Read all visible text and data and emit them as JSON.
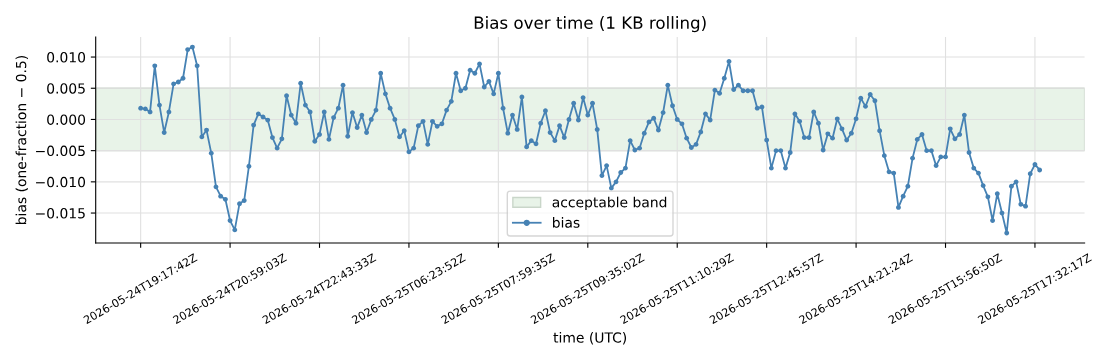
{
  "chart_data": {
    "type": "line",
    "title": "Bias over time (1 KB rolling)",
    "xlabel": "time (UTC)",
    "ylabel": "bias (one-fraction − 0.5)",
    "categories": [
      "2026-05-24T19:17:42Z",
      null,
      null,
      null,
      null,
      null,
      null,
      null,
      null,
      null,
      null,
      null,
      null,
      null,
      null,
      null,
      null,
      null,
      null,
      "2026-05-24T20:59:03Z",
      null,
      null,
      null,
      null,
      null,
      null,
      null,
      null,
      null,
      null,
      null,
      null,
      null,
      null,
      null,
      null,
      null,
      null,
      "2026-05-24T22:43:33Z",
      null,
      null,
      null,
      null,
      null,
      null,
      null,
      null,
      null,
      null,
      null,
      null,
      null,
      null,
      null,
      null,
      null,
      null,
      "2026-05-25T06:23:52Z",
      null,
      null,
      null,
      null,
      null,
      null,
      null,
      null,
      null,
      null,
      null,
      null,
      null,
      null,
      null,
      null,
      null,
      null,
      "2026-05-25T07:59:35Z",
      null,
      null,
      null,
      null,
      null,
      null,
      null,
      null,
      null,
      null,
      null,
      null,
      null,
      null,
      null,
      null,
      null,
      null,
      "2026-05-25T09:35:02Z",
      null,
      null,
      null,
      null,
      null,
      null,
      null,
      null,
      null,
      null,
      null,
      null,
      null,
      null,
      null,
      null,
      null,
      null,
      "2026-05-25T11:10:29Z",
      null,
      null,
      null,
      null,
      null,
      null,
      null,
      null,
      null,
      null,
      null,
      null,
      null,
      null,
      null,
      null,
      null,
      null,
      "2026-05-25T12:45:57Z",
      null,
      null,
      null,
      null,
      null,
      null,
      null,
      null,
      null,
      null,
      null,
      null,
      null,
      null,
      null,
      null,
      null,
      null,
      "2026-05-25T14:21:24Z",
      null,
      null,
      null,
      null,
      null,
      null,
      null,
      null,
      null,
      null,
      null,
      null,
      null,
      null,
      null,
      null,
      null,
      null,
      "2026-05-25T15:56:50Z",
      null,
      null,
      null,
      null,
      null,
      null,
      null,
      null,
      null,
      null,
      null,
      null,
      null,
      null,
      null,
      null,
      null,
      null,
      "2026-05-25T17:32:17Z",
      null
    ],
    "series": [
      {
        "name": "bias",
        "color": "#4682b4",
        "values": [
          0.0018,
          0.0017,
          0.0012,
          0.0086,
          0.0023,
          -0.0021,
          0.0012,
          0.0057,
          0.006,
          0.0066,
          0.0112,
          0.0116,
          0.0086,
          -0.0028,
          -0.0017,
          -0.0054,
          -0.0108,
          -0.0123,
          -0.0128,
          -0.0162,
          -0.0177,
          -0.0135,
          -0.013,
          -0.0075,
          -0.0009,
          0.0009,
          0.0004,
          -0.0001,
          -0.0029,
          -0.0046,
          -0.0031,
          0.0038,
          0.0007,
          -0.0006,
          0.0058,
          0.0023,
          0.0012,
          -0.0035,
          -0.0024,
          0.0012,
          -0.0032,
          0.0003,
          0.0018,
          0.0055,
          -0.0027,
          0.0011,
          -0.0013,
          0.0007,
          -0.0021,
          0.0,
          0.0015,
          0.0074,
          0.0041,
          0.0018,
          0.0,
          -0.0028,
          -0.0018,
          -0.0052,
          -0.0046,
          -0.001,
          -0.0003,
          -0.004,
          -0.0003,
          -0.0011,
          -0.0007,
          0.0015,
          0.0029,
          0.0074,
          0.0046,
          0.005,
          0.0079,
          0.0074,
          0.0089,
          0.0052,
          0.0061,
          0.0041,
          0.0074,
          0.0018,
          -0.0022,
          0.0007,
          -0.0016,
          0.0036,
          -0.0044,
          -0.0034,
          -0.0039,
          -0.0006,
          0.0014,
          -0.0021,
          -0.0034,
          -0.001,
          -0.0029,
          0.0,
          0.0026,
          -0.0001,
          0.0035,
          0.0007,
          0.0026,
          -0.0016,
          -0.009,
          -0.0074,
          -0.011,
          -0.01,
          -0.0085,
          -0.0078,
          -0.0034,
          -0.0049,
          -0.0046,
          -0.0022,
          -0.0004,
          0.0002,
          -0.0017,
          0.0011,
          0.0055,
          0.0022,
          0.0,
          -0.0007,
          -0.003,
          -0.0045,
          -0.004,
          -0.002,
          0.0009,
          -0.0001,
          0.0047,
          0.0042,
          0.0066,
          0.0093,
          0.0048,
          0.0055,
          0.0046,
          0.0046,
          0.0046,
          0.0018,
          0.002,
          -0.0033,
          -0.0078,
          -0.005,
          -0.005,
          -0.0078,
          -0.0053,
          0.0009,
          -0.0003,
          -0.0029,
          -0.0029,
          0.0012,
          -0.0006,
          -0.0049,
          -0.0023,
          -0.003,
          0.0001,
          -0.0015,
          -0.0033,
          -0.0022,
          0.0001,
          0.0034,
          0.0021,
          0.004,
          0.003,
          -0.0018,
          -0.0058,
          -0.0084,
          -0.0086,
          -0.0141,
          -0.0123,
          -0.0107,
          -0.0062,
          -0.0032,
          -0.0024,
          -0.005,
          -0.005,
          -0.0074,
          -0.006,
          -0.006,
          -0.0015,
          -0.0031,
          -0.0024,
          0.0007,
          -0.0053,
          -0.0078,
          -0.0086,
          -0.0106,
          -0.0124,
          -0.0162,
          -0.0119,
          -0.015,
          -0.0182,
          -0.0107,
          -0.01,
          -0.0136,
          -0.0139,
          -0.0087,
          -0.0072,
          -0.0081
        ]
      }
    ],
    "bands": [
      {
        "axis": "y",
        "from": -0.005,
        "to": 0.005,
        "label": "acceptable band",
        "color": "#e8f3e8"
      }
    ],
    "ylim": [
      -0.0198,
      0.0132
    ],
    "yticks": [
      {
        "value": -0.015,
        "label": "−0.015"
      },
      {
        "value": -0.01,
        "label": "−0.010"
      },
      {
        "value": -0.005,
        "label": "−0.005"
      },
      {
        "value": 0,
        "label": "0.000"
      },
      {
        "value": 0.005,
        "label": "0.005"
      },
      {
        "value": 0.01,
        "label": "0.010"
      }
    ],
    "grid": true,
    "legend": "bottom",
    "marker": "circle",
    "line_style": "solid"
  }
}
